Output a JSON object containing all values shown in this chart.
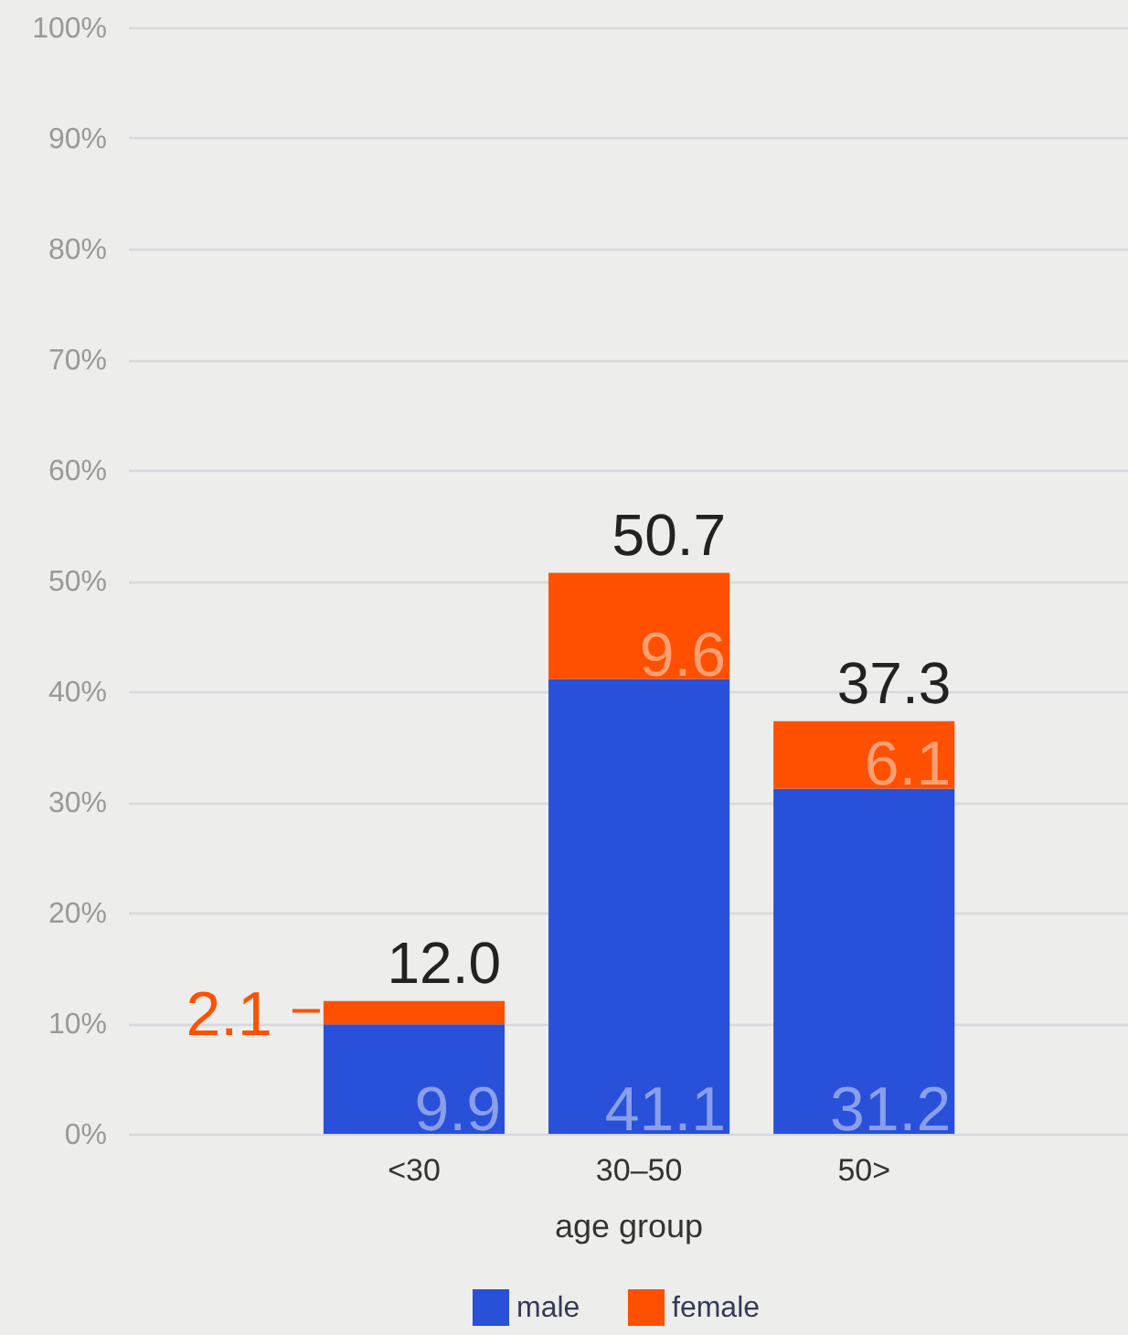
{
  "chart_data": {
    "type": "bar",
    "stacked": true,
    "xlabel": "age group",
    "categories": [
      "<30",
      "30–50",
      "50>"
    ],
    "series": [
      {
        "name": "male",
        "color": "#2850d8",
        "values": [
          9.9,
          41.1,
          31.2
        ]
      },
      {
        "name": "female",
        "color": "#fe5000",
        "values": [
          2.1,
          9.6,
          6.1
        ]
      }
    ],
    "ylim": [
      0,
      100
    ],
    "yticks": [
      {
        "value": 0,
        "label": "0%"
      },
      {
        "value": 10,
        "label": "10%"
      },
      {
        "value": 20,
        "label": "20%"
      },
      {
        "value": 30,
        "label": "30%"
      },
      {
        "value": 40,
        "label": "40%"
      },
      {
        "value": 50,
        "label": "50%"
      },
      {
        "value": 60,
        "label": "60%"
      },
      {
        "value": 70,
        "label": "70%"
      },
      {
        "value": 80,
        "label": "80%"
      },
      {
        "value": 90,
        "label": "90%"
      },
      {
        "value": 100,
        "label": "100%"
      }
    ],
    "grid": "y",
    "legend": "bottom",
    "data_labels": true,
    "totals": [
      "12.0",
      "50.7",
      "37.3"
    ]
  }
}
